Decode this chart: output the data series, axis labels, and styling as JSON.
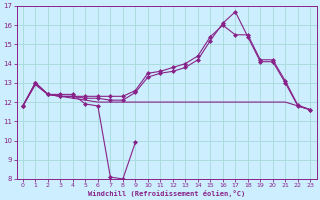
{
  "xlabel": "Windchill (Refroidissement éolien,°C)",
  "bg_color": "#cceeff",
  "grid_color": "#aadddd",
  "line_color": "#882288",
  "ylim": [
    8,
    17
  ],
  "xlim": [
    -0.5,
    23.5
  ],
  "yticks": [
    8,
    9,
    10,
    11,
    12,
    13,
    14,
    15,
    16,
    17
  ],
  "xticks": [
    0,
    1,
    2,
    3,
    4,
    5,
    6,
    7,
    8,
    9,
    10,
    11,
    12,
    13,
    14,
    15,
    16,
    17,
    18,
    19,
    20,
    21,
    22,
    23
  ],
  "series": [
    {
      "x": [
        0,
        1,
        2,
        3,
        4,
        5,
        6,
        7,
        8,
        9
      ],
      "y": [
        11.8,
        13.0,
        12.4,
        12.4,
        12.4,
        11.9,
        11.8,
        8.1,
        8.0,
        9.9
      ],
      "marker": "D"
    },
    {
      "x": [
        0,
        1,
        2,
        3,
        4,
        5,
        6,
        7,
        8,
        9,
        10,
        11,
        12,
        13,
        14,
        15,
        16,
        17,
        18,
        19,
        20,
        21,
        22,
        23
      ],
      "y": [
        11.8,
        12.9,
        12.4,
        12.3,
        12.2,
        12.1,
        12.0,
        12.0,
        12.0,
        12.0,
        12.0,
        12.0,
        12.0,
        12.0,
        12.0,
        12.0,
        12.0,
        12.0,
        12.0,
        12.0,
        12.0,
        12.0,
        11.8,
        11.6
      ],
      "marker": null
    },
    {
      "x": [
        0,
        1,
        2,
        3,
        4,
        5,
        6,
        7,
        8,
        9,
        10,
        11,
        12,
        13,
        14,
        15,
        16,
        17,
        18,
        19,
        20,
        21,
        22,
        23
      ],
      "y": [
        11.8,
        13.0,
        12.4,
        12.3,
        12.3,
        12.2,
        12.2,
        12.1,
        12.1,
        12.5,
        13.3,
        13.5,
        13.6,
        13.8,
        14.2,
        15.2,
        16.1,
        16.7,
        15.4,
        14.1,
        14.1,
        13.0,
        11.8,
        11.6
      ],
      "marker": "D"
    },
    {
      "x": [
        0,
        1,
        2,
        3,
        4,
        5,
        6,
        7,
        8,
        9,
        10,
        11,
        12,
        13,
        14,
        15,
        16,
        17,
        18,
        19,
        20,
        21,
        22,
        23
      ],
      "y": [
        11.8,
        13.0,
        12.4,
        12.3,
        12.3,
        12.3,
        12.3,
        12.3,
        12.3,
        12.6,
        13.5,
        13.6,
        13.8,
        14.0,
        14.4,
        15.4,
        16.0,
        15.5,
        15.5,
        14.2,
        14.2,
        13.1,
        11.85,
        11.6
      ],
      "marker": "D"
    }
  ]
}
